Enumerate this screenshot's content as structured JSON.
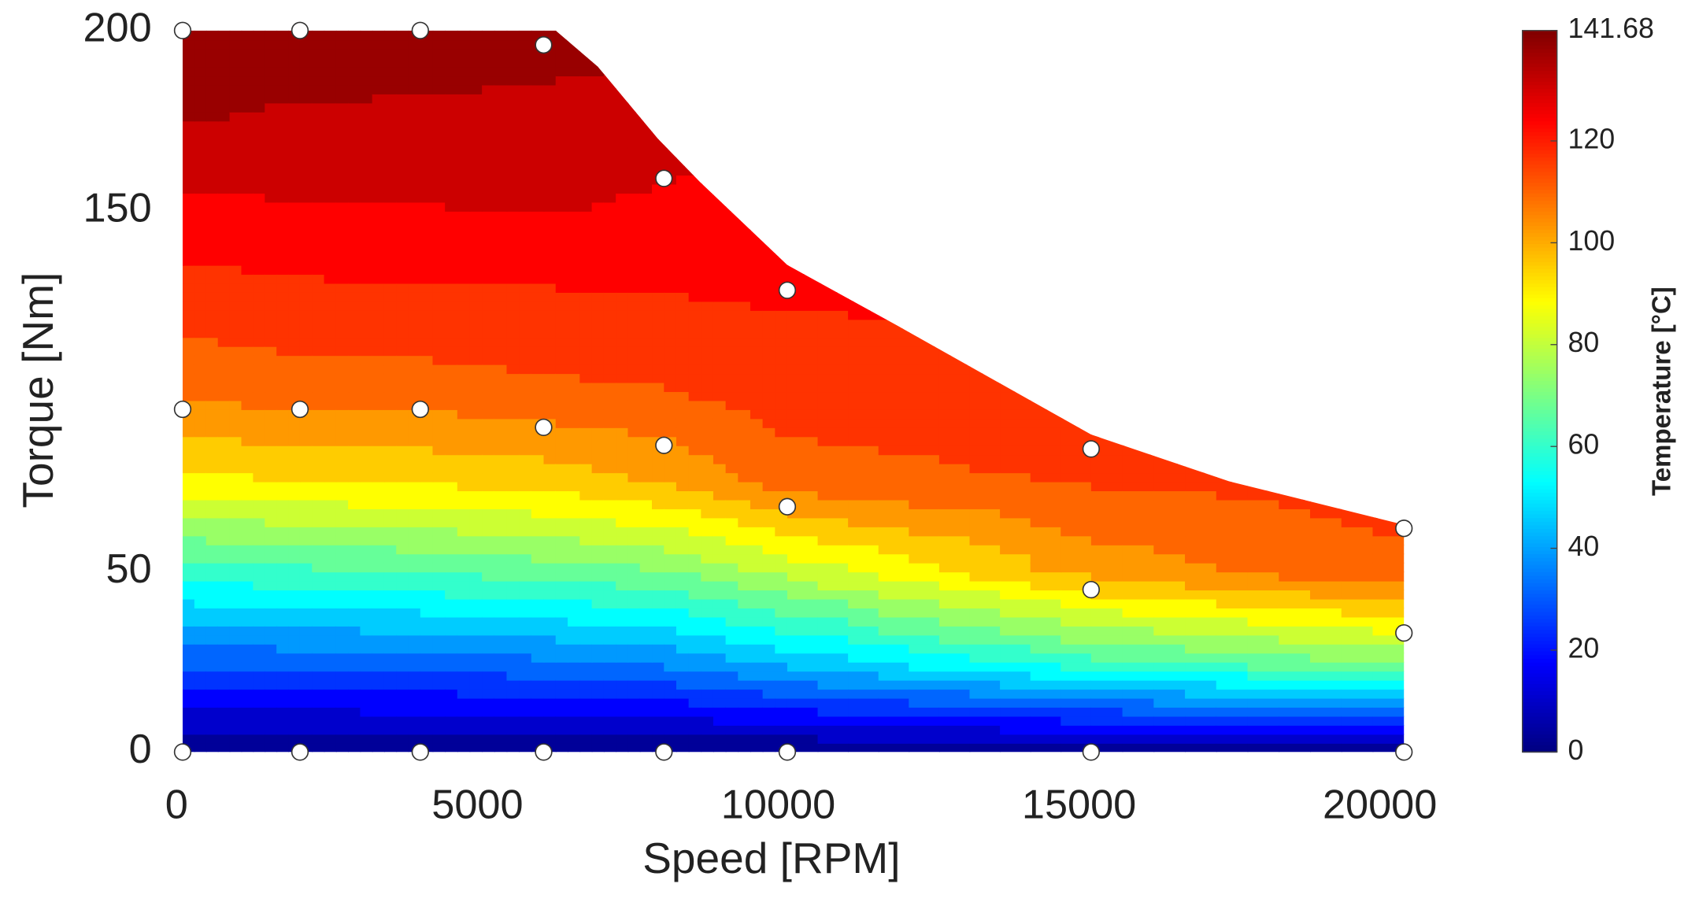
{
  "chart_data": {
    "type": "contour",
    "x_label": "Speed [RPM]",
    "y_label": "Torque [Nm]",
    "colorbar_label": "Temperature [°C]",
    "xlim": [
      0,
      21000
    ],
    "ylim": [
      0,
      200
    ],
    "xticks": [
      0,
      5000,
      10000,
      15000,
      20000
    ],
    "yticks": [
      0,
      50,
      150,
      200
    ],
    "clim": [
      0,
      141.68
    ],
    "cticks": [
      0,
      20,
      40,
      60,
      80,
      100,
      120,
      141.68
    ],
    "colormap": "jet",
    "levels": 20,
    "grid_x": [
      100,
      2050,
      4050,
      6100,
      8100,
      10150,
      15200,
      20400
    ],
    "grid_y": [
      0,
      25,
      50,
      75,
      100,
      125,
      150,
      175,
      200
    ],
    "z": [
      [
        0,
        0,
        0,
        0,
        0,
        0,
        0,
        0
      ],
      [
        30,
        31,
        32,
        34,
        37,
        45,
        62,
        72
      ],
      [
        60,
        62,
        64,
        67,
        70,
        80,
        102,
        112
      ],
      [
        90,
        92,
        93,
        95,
        100,
        110,
        114,
        116
      ],
      [
        108,
        110,
        110,
        112,
        113,
        117,
        118,
        119
      ],
      [
        117,
        118,
        119,
        119,
        120,
        121,
        121,
        121
      ],
      [
        125,
        127,
        127,
        128,
        126,
        124,
        123,
        122
      ],
      [
        135,
        133,
        133,
        132,
        131,
        128,
        125,
        123
      ],
      [
        141.68,
        140,
        139,
        138,
        136,
        132,
        128,
        125
      ]
    ],
    "envelope": {
      "x": [
        100,
        6300,
        7000,
        8000,
        8700,
        10150,
        12000,
        15200,
        17500,
        20400
      ],
      "y": [
        200,
        200,
        190,
        170,
        158,
        135,
        118,
        88,
        75,
        63
      ]
    },
    "points": {
      "x": [
        100,
        2050,
        4050,
        6100,
        8100,
        10150,
        15200,
        20400,
        100,
        2050,
        4050,
        6100,
        8100,
        10150,
        100,
        2050,
        4050,
        6100,
        8100,
        10150,
        15200,
        20400,
        15200,
        20400
      ],
      "y": [
        0,
        0,
        0,
        0,
        0,
        0,
        0,
        0,
        200,
        200,
        200,
        196,
        159,
        128,
        95,
        95,
        95,
        90,
        85,
        68,
        84,
        62,
        45,
        33
      ]
    }
  }
}
